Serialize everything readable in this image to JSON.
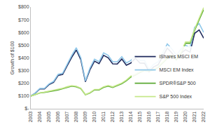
{
  "chart_data": {
    "type": "line",
    "y_label": "Growth of $100",
    "x": [
      2003,
      2003.5,
      2004,
      2004.5,
      2005,
      2005.5,
      2006,
      2006.5,
      2007,
      2007.5,
      2008,
      2008.5,
      2009,
      2009.5,
      2010,
      2010.5,
      2011,
      2011.5,
      2012,
      2012.5,
      2013,
      2013.5,
      2014,
      2014.5,
      2015,
      2015.5,
      2016,
      2016.5,
      2017,
      2017.5,
      2018,
      2018.5,
      2019,
      2019.5,
      2020,
      2020.5,
      2021,
      2021.5,
      2022
    ],
    "series": [
      {
        "name": "iShares MSCI EM",
        "color": "#1f2a5c",
        "values": [
          100,
          123,
          156,
          156,
          190,
          208,
          262,
          270,
          338,
          405,
          462,
          385,
          212,
          307,
          375,
          355,
          420,
          401,
          353,
          352,
          391,
          342,
          360,
          398,
          359,
          358,
          292,
          329,
          347,
          412,
          477,
          439,
          392,
          437,
          464,
          445,
          593,
          620,
          555
        ]
      },
      {
        "name": "MSCI EM Index",
        "color": "#8fc8ea",
        "values": [
          100,
          125,
          160,
          160,
          195,
          215,
          270,
          280,
          350,
          420,
          480,
          400,
          220,
          320,
          390,
          370,
          440,
          420,
          370,
          370,
          410,
          360,
          380,
          420,
          380,
          380,
          310,
          350,
          370,
          440,
          510,
          470,
          420,
          470,
          500,
          480,
          640,
          670,
          600
        ]
      },
      {
        "name": "SPDR®S&P 500",
        "color": "#5aa832",
        "values": [
          100,
          111,
          124,
          129,
          137,
          141,
          148,
          158,
          170,
          178,
          173,
          158,
          110,
          124,
          148,
          148,
          168,
          178,
          168,
          183,
          197,
          220,
          250,
          265,
          285,
          300,
          295,
          305,
          325,
          360,
          395,
          415,
          385,
          435,
          515,
          515,
          615,
          700,
          780
        ]
      },
      {
        "name": "S&P 500 Index",
        "color": "#c5e88a",
        "values": [
          100,
          112,
          126,
          131,
          139,
          143,
          151,
          161,
          173,
          182,
          177,
          162,
          112,
          127,
          152,
          152,
          173,
          183,
          172,
          188,
          202,
          226,
          257,
          272,
          292,
          307,
          302,
          312,
          333,
          368,
          405,
          425,
          395,
          445,
          525,
          525,
          625,
          712,
          795
        ]
      }
    ],
    "xlim": [
      2003,
      2022
    ],
    "xticks": [
      2003,
      2004,
      2005,
      2006,
      2007,
      2008,
      2009,
      2010,
      2011,
      2012,
      2013,
      2014,
      2015,
      2016,
      2017,
      2018,
      2019,
      2020,
      2021,
      2022
    ],
    "ylim": [
      0,
      800
    ],
    "yticks": [
      {
        "value": 0,
        "label": "$-"
      },
      {
        "value": 100,
        "label": "$100"
      },
      {
        "value": 200,
        "label": "$200"
      },
      {
        "value": 300,
        "label": "$300"
      },
      {
        "value": 400,
        "label": "$400"
      },
      {
        "value": 500,
        "label": "$500"
      },
      {
        "value": 600,
        "label": "$600"
      },
      {
        "value": 700,
        "label": "$700"
      },
      {
        "value": 800,
        "label": "$800"
      }
    ],
    "grid": false,
    "legend": "lower right"
  }
}
